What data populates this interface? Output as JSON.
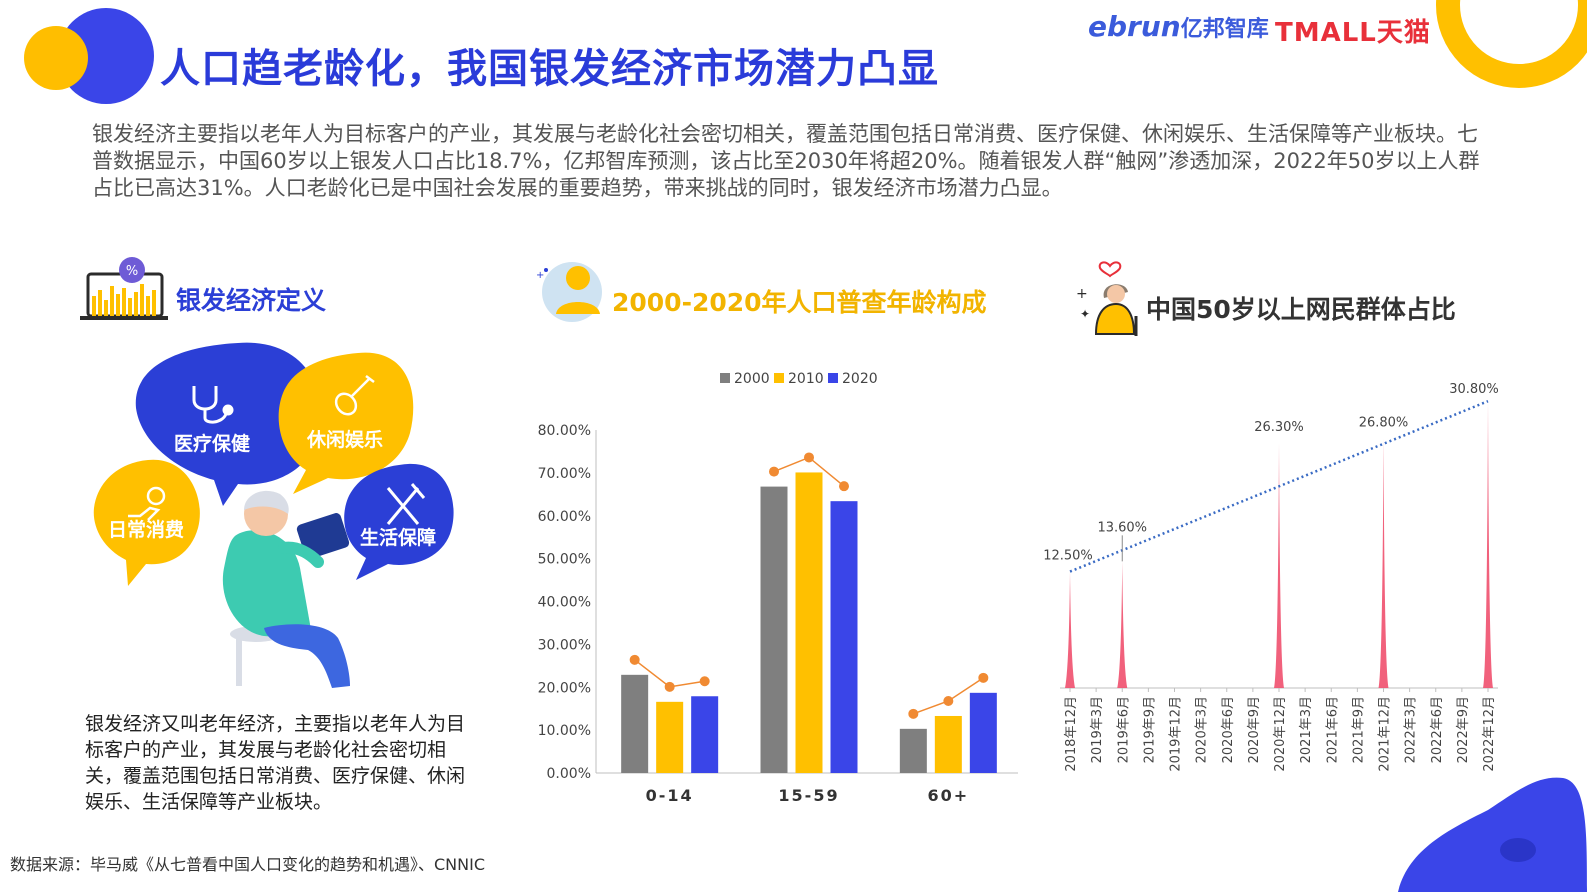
{
  "header": {
    "title": "人口趋老龄化，我国银发经济市场潜力凸显",
    "logo_ebrun": "ebrun",
    "logo_ebrun_cn": "亿邦智库",
    "logo_tmall": "TMALL天猫"
  },
  "intro_text": "银发经济主要指以老年人为目标客户的产业，其发展与老龄化社会密切相关，覆盖范围包括日常消费、医疗保健、休闲娱乐、生活保障等产业板块。七普数据显示，中国60岁以上银发人口占比18.7%，亿邦智库预测，该占比至2030年将超20%。随着银发人群“触网”渗透加深，2022年50岁以上人群占比已高达31%。人口老龄化已是中国社会发展的重要趋势，带来挑战的同时，银发经济市场潜力凸显。",
  "section1": {
    "title": "银发经济定义",
    "badge_symbol": "%",
    "bubbles": {
      "medical": "医疗保健",
      "leisure": "休闲娱乐",
      "daily": "日常消费",
      "security": "生活保障"
    },
    "description": "银发经济又叫老年经济，主要指以老年人为目标客户的产业，其发展与老龄化社会密切相关，覆盖范围包括日常消费、医疗保健、休闲娱乐、生活保障等产业板块。"
  },
  "section2": {
    "title": "2000-2020年人口普查年龄构成"
  },
  "section3": {
    "title": "中国50岁以上网民群体占比"
  },
  "source": "数据来源：毕马威《从七普看中国人口变化的趋势和机遇》、CNNIC",
  "colors": {
    "gray": "#7F7F7F",
    "yellow": "#FFC000",
    "blue": "#3A45E8",
    "orange": "#F08A32",
    "pink": "#F0506E",
    "dotted": "#3A6BC4"
  },
  "chart_data": [
    {
      "type": "bar",
      "categories": [
        "0-14",
        "15-59",
        "60+"
      ],
      "series": [
        {
          "name": "2000",
          "values": [
            22.9,
            66.8,
            10.3
          ]
        },
        {
          "name": "2010",
          "values": [
            16.6,
            70.1,
            13.3
          ]
        },
        {
          "name": "2020",
          "values": [
            17.9,
            63.4,
            18.7
          ]
        }
      ],
      "ylim": [
        0,
        80
      ],
      "yticks": [
        "0.00%",
        "10.00%",
        "20.00%",
        "30.00%",
        "40.00%",
        "50.00%",
        "60.00%",
        "70.00%",
        "80.00%"
      ],
      "legend": "top"
    },
    {
      "type": "area",
      "x": [
        "2018年12月",
        "2019年3月",
        "2019年6月",
        "2019年9月",
        "2019年12月",
        "2020年3月",
        "2020年6月",
        "2020年9月",
        "2020年12月",
        "2021年3月",
        "2021年6月",
        "2021年9月",
        "2021年12月",
        "2022年3月",
        "2022年6月",
        "2022年9月",
        "2022年12月"
      ],
      "points": [
        {
          "x": "2018年12月",
          "value": 12.5,
          "label": "12.50%"
        },
        {
          "x": "2019年6月",
          "value": 13.6,
          "label": "13.60%"
        },
        {
          "x": "2020年12月",
          "value": 26.3,
          "label": "26.30%"
        },
        {
          "x": "2021年12月",
          "value": 26.8,
          "label": "26.80%"
        },
        {
          "x": "2022年12月",
          "value": 30.8,
          "label": "30.80%"
        }
      ],
      "trendline": "linear",
      "ylim": [
        0,
        32
      ]
    }
  ]
}
